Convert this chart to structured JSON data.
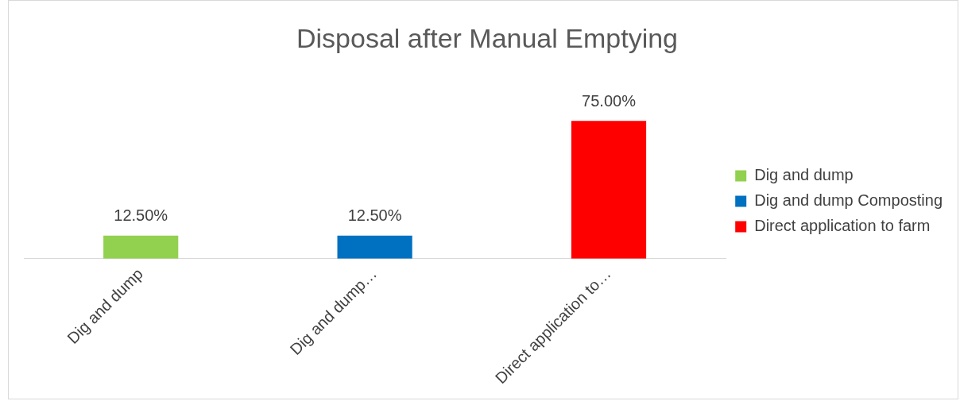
{
  "chart_data": {
    "type": "bar",
    "title": "Disposal after Manual Emptying",
    "categories": [
      "Dig and dump",
      "Dig and dump…",
      "Direct application to…"
    ],
    "series": [
      {
        "name": "Dig and dump",
        "color": "#92d050",
        "values": [
          12.5,
          null,
          null
        ],
        "value_labels": [
          "12.50%",
          null,
          null
        ]
      },
      {
        "name": "Dig and dump Composting",
        "color": "#0070c0",
        "values": [
          null,
          12.5,
          null
        ],
        "value_labels": [
          null,
          "12.50%",
          null
        ]
      },
      {
        "name": "Direct application to farm",
        "color": "#ff0000",
        "values": [
          null,
          null,
          75
        ],
        "value_labels": [
          null,
          null,
          "75.00%"
        ]
      }
    ],
    "legend": "right",
    "grid": false
  }
}
